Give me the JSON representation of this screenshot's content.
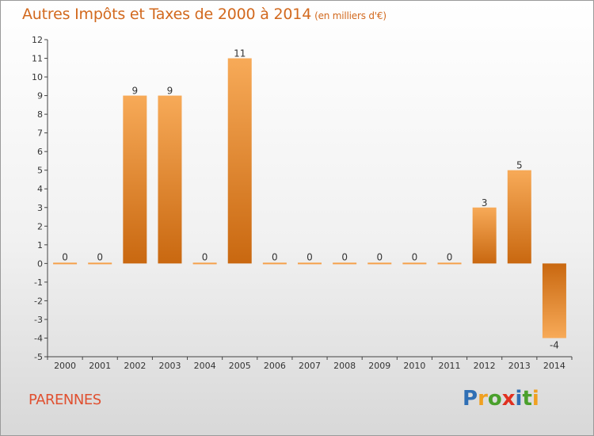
{
  "title": "Autres Impôts et Taxes de 2000 à 2014",
  "title_unit": "(en milliers d'€)",
  "commune": "PARENNES",
  "logo": {
    "text": "Proxiti",
    "letters": [
      {
        "ch": "P",
        "color": "#2f6fb5"
      },
      {
        "ch": "r",
        "color": "#f0a020"
      },
      {
        "ch": "o",
        "color": "#4aa02c"
      },
      {
        "ch": "x",
        "color": "#e03020"
      },
      {
        "ch": "i",
        "color": "#2f6fb5"
      },
      {
        "ch": "t",
        "color": "#4aa02c"
      },
      {
        "ch": "i",
        "color": "#f0a020"
      }
    ]
  },
  "chart_data": {
    "type": "bar",
    "categories": [
      "2000",
      "2001",
      "2002",
      "2003",
      "2004",
      "2005",
      "2006",
      "2007",
      "2008",
      "2009",
      "2010",
      "2011",
      "2012",
      "2013",
      "2014"
    ],
    "values": [
      0,
      0,
      9,
      9,
      0,
      11,
      0,
      0,
      0,
      0,
      0,
      0,
      3,
      5,
      -4
    ],
    "data_labels": [
      "0",
      "0",
      "9",
      "9",
      "0",
      "11",
      "0",
      "0",
      "0",
      "0",
      "0",
      "0",
      "3",
      "5",
      "-4"
    ],
    "title": "Autres Impôts et Taxes de 2000 à 2014",
    "xlabel": "",
    "ylabel": "",
    "ylim": [
      -5,
      12
    ],
    "y_ticks": [
      12,
      11,
      10,
      9,
      8,
      7,
      6,
      5,
      4,
      3,
      2,
      1,
      0,
      -1,
      -2,
      -3,
      -4,
      -5
    ],
    "y_tick_labels": [
      "12",
      "11",
      "10",
      "9",
      "8",
      "7",
      "6",
      "5",
      "4",
      "3",
      "2",
      "1",
      "0",
      "-1",
      "-2",
      "-3",
      "-4",
      "-5"
    ],
    "grid": false,
    "bar_color": "#f5a04a",
    "bar_color_dark": "#cc6a14"
  }
}
